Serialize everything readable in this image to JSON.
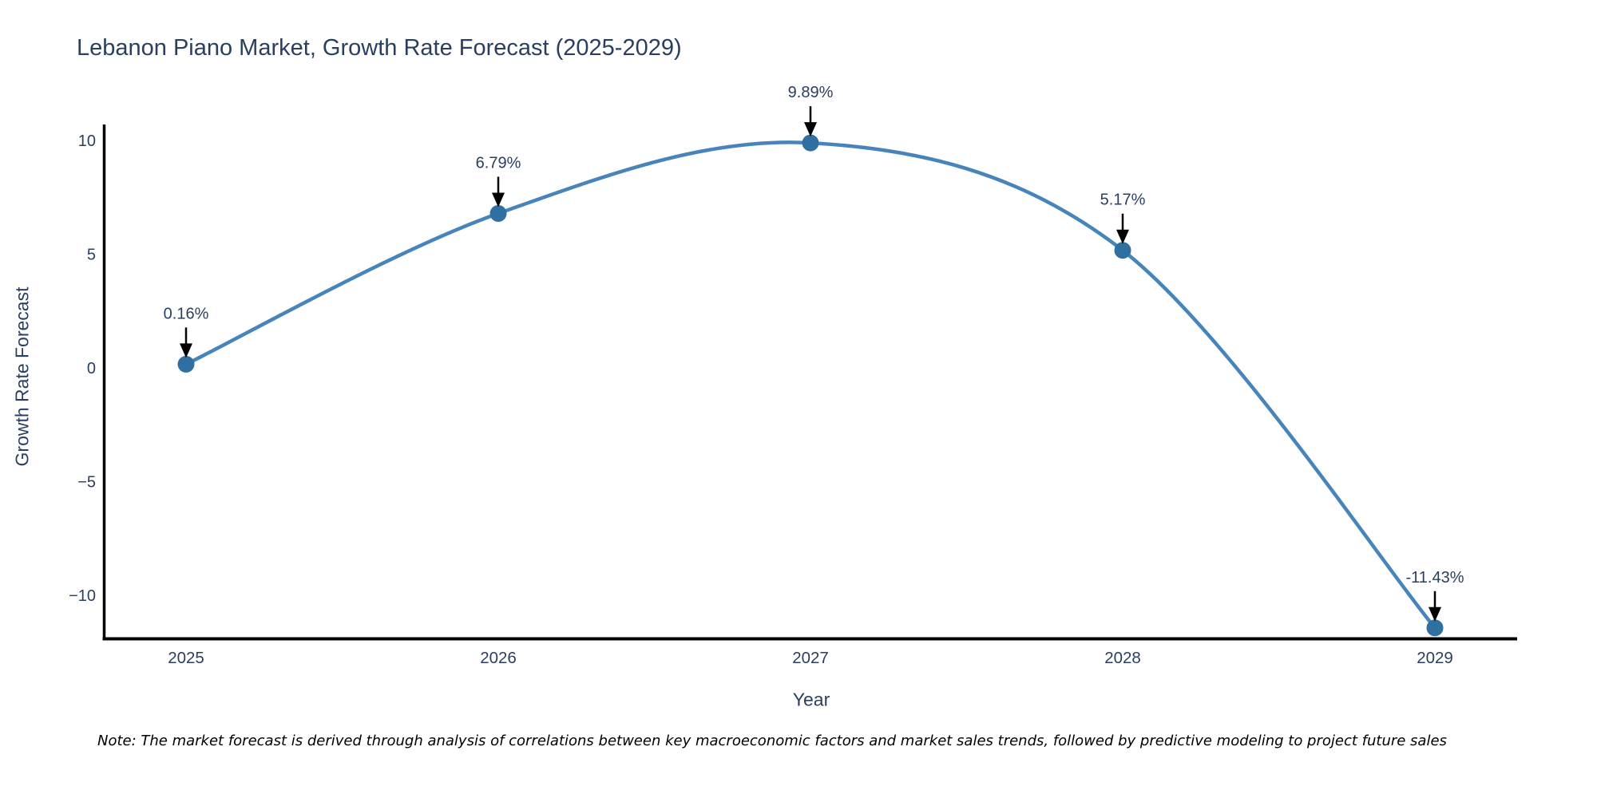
{
  "title": "Lebanon Piano Market, Growth Rate Forecast (2025-2029)",
  "footnote": "Note: The market forecast is derived through analysis of correlations between key macroeconomic factors and market sales trends, followed by predictive modeling to project future sales",
  "chart_data": {
    "type": "line",
    "line_shape": "spline",
    "title": "Lebanon Piano Market, Growth Rate Forecast (2025-2029)",
    "xlabel": "Year",
    "ylabel": "Growth Rate Forecast",
    "x": [
      2025,
      2026,
      2027,
      2028,
      2029
    ],
    "series": [
      {
        "name": "Growth Rate Forecast",
        "values": [
          0.16,
          6.79,
          9.89,
          5.17,
          -11.43
        ]
      }
    ],
    "point_labels": [
      "0.16%",
      "6.79%",
      "9.89%",
      "5.17%",
      "-11.43%"
    ],
    "yticks": [
      10,
      5,
      0,
      -5,
      -10
    ],
    "ytick_labels": [
      "10",
      "5",
      "0",
      "−5",
      "−10"
    ],
    "xtick_labels": [
      "2025",
      "2026",
      "2027",
      "2028",
      "2029"
    ],
    "ylim": [
      -11.9,
      10.7
    ],
    "grid": false,
    "legend_position": "none",
    "annotation_style": "value-above-with-black-arrow",
    "colors": {
      "line": "#4684bb",
      "marker": "#2f70a0",
      "axis": "#000000",
      "labels": "#2a3f5f",
      "note": "#000000",
      "background": "#ffffff"
    }
  }
}
